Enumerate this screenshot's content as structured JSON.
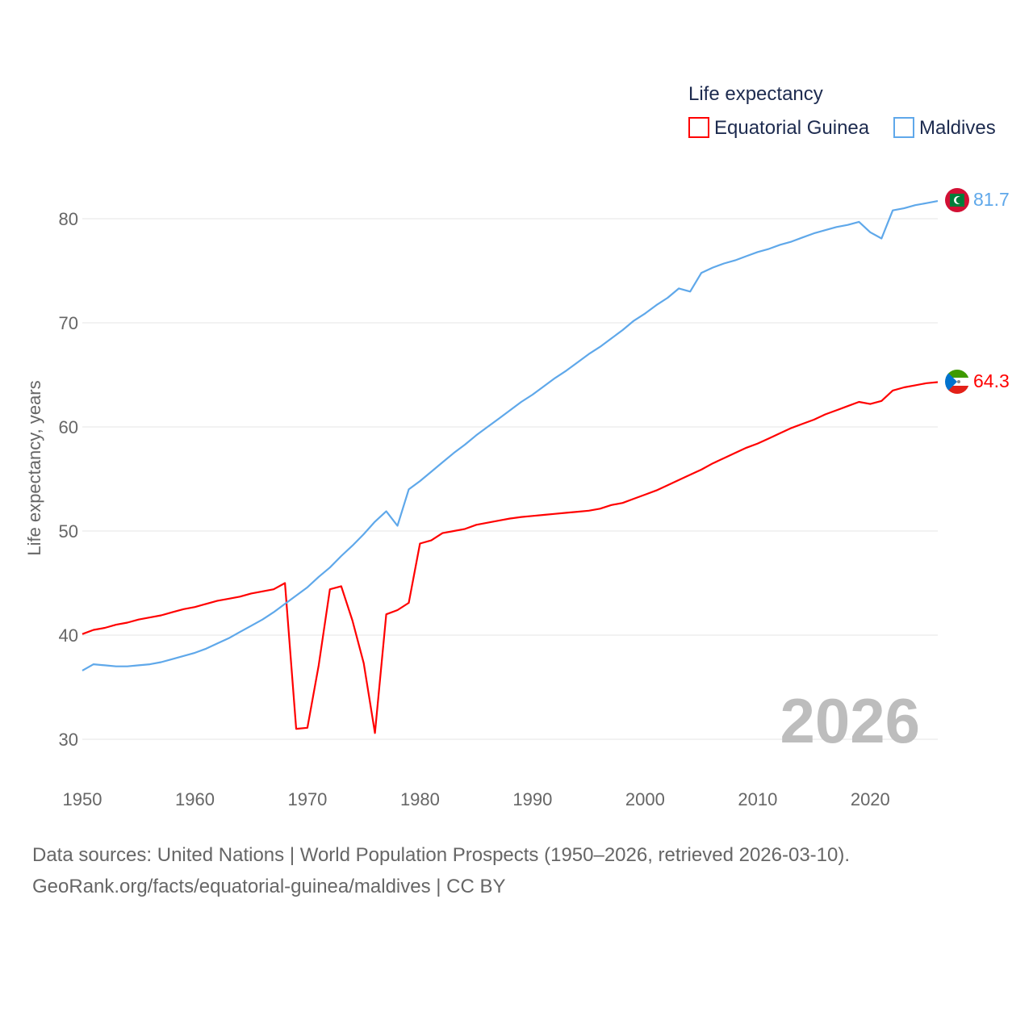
{
  "chart_data": {
    "type": "line",
    "legend_title": "Life expectancy",
    "ylabel": "Life expectancy, years",
    "xlabel": "",
    "xlim": [
      1950,
      2026
    ],
    "ylim": [
      26,
      85
    ],
    "yticks": [
      30,
      40,
      50,
      60,
      70,
      80
    ],
    "xticks": [
      1950,
      1960,
      1970,
      1980,
      1990,
      2000,
      2010,
      2020
    ],
    "grid": true,
    "legend_position": "top-right",
    "year_watermark": "2026",
    "x": [
      1950,
      1951,
      1952,
      1953,
      1954,
      1955,
      1956,
      1957,
      1958,
      1959,
      1960,
      1961,
      1962,
      1963,
      1964,
      1965,
      1966,
      1967,
      1968,
      1969,
      1970,
      1971,
      1972,
      1973,
      1974,
      1975,
      1976,
      1977,
      1978,
      1979,
      1980,
      1981,
      1982,
      1983,
      1984,
      1985,
      1986,
      1987,
      1988,
      1989,
      1990,
      1991,
      1992,
      1993,
      1994,
      1995,
      1996,
      1997,
      1998,
      1999,
      2000,
      2001,
      2002,
      2003,
      2004,
      2005,
      2006,
      2007,
      2008,
      2009,
      2010,
      2011,
      2012,
      2013,
      2014,
      2015,
      2016,
      2017,
      2018,
      2019,
      2020,
      2021,
      2022,
      2023,
      2024,
      2025,
      2026
    ],
    "series": [
      {
        "name": "Equatorial Guinea",
        "color": "#ff0000",
        "end_label": "64.3",
        "values": [
          40.1,
          40.5,
          40.7,
          41.0,
          41.2,
          41.5,
          41.7,
          41.9,
          42.2,
          42.5,
          42.7,
          43.0,
          43.3,
          43.5,
          43.7,
          44.0,
          44.2,
          44.4,
          45.0,
          31.0,
          31.1,
          37.1,
          44.4,
          44.7,
          41.4,
          37.3,
          30.6,
          42.0,
          42.4,
          43.1,
          48.8,
          49.1,
          49.8,
          50.0,
          50.2,
          50.6,
          50.8,
          51.0,
          51.2,
          51.35,
          51.45,
          51.55,
          51.65,
          51.75,
          51.85,
          51.95,
          52.15,
          52.5,
          52.7,
          53.1,
          53.5,
          53.9,
          54.4,
          54.9,
          55.4,
          55.9,
          56.5,
          57.0,
          57.5,
          58.0,
          58.4,
          58.9,
          59.4,
          59.9,
          60.3,
          60.7,
          61.2,
          61.6,
          62.0,
          62.4,
          62.2,
          62.5,
          63.5,
          63.8,
          64.0,
          64.2,
          64.3
        ]
      },
      {
        "name": "Maldives",
        "color": "#5fa8ea",
        "end_label": "81.7",
        "values": [
          36.6,
          37.2,
          37.1,
          37.0,
          37.0,
          37.1,
          37.2,
          37.4,
          37.7,
          38.0,
          38.3,
          38.7,
          39.2,
          39.7,
          40.3,
          40.9,
          41.5,
          42.2,
          43.0,
          43.8,
          44.6,
          45.6,
          46.5,
          47.6,
          48.6,
          49.7,
          50.9,
          51.9,
          50.5,
          54.0,
          54.8,
          55.7,
          56.6,
          57.5,
          58.3,
          59.2,
          60.0,
          60.8,
          61.6,
          62.4,
          63.1,
          63.9,
          64.7,
          65.4,
          66.2,
          67.0,
          67.7,
          68.5,
          69.3,
          70.2,
          70.9,
          71.7,
          72.4,
          73.3,
          73.0,
          74.8,
          75.3,
          75.7,
          76.0,
          76.4,
          76.8,
          77.1,
          77.5,
          77.8,
          78.2,
          78.6,
          78.9,
          79.2,
          79.4,
          79.7,
          78.7,
          78.1,
          80.8,
          81.0,
          81.3,
          81.5,
          81.7
        ]
      }
    ]
  },
  "footer": {
    "line1": "Data sources: United Nations | World Population Prospects (1950–2026, retrieved 2026-03-10).",
    "line2": "GeoRank.org/facts/equatorial-guinea/maldives | CC BY"
  }
}
